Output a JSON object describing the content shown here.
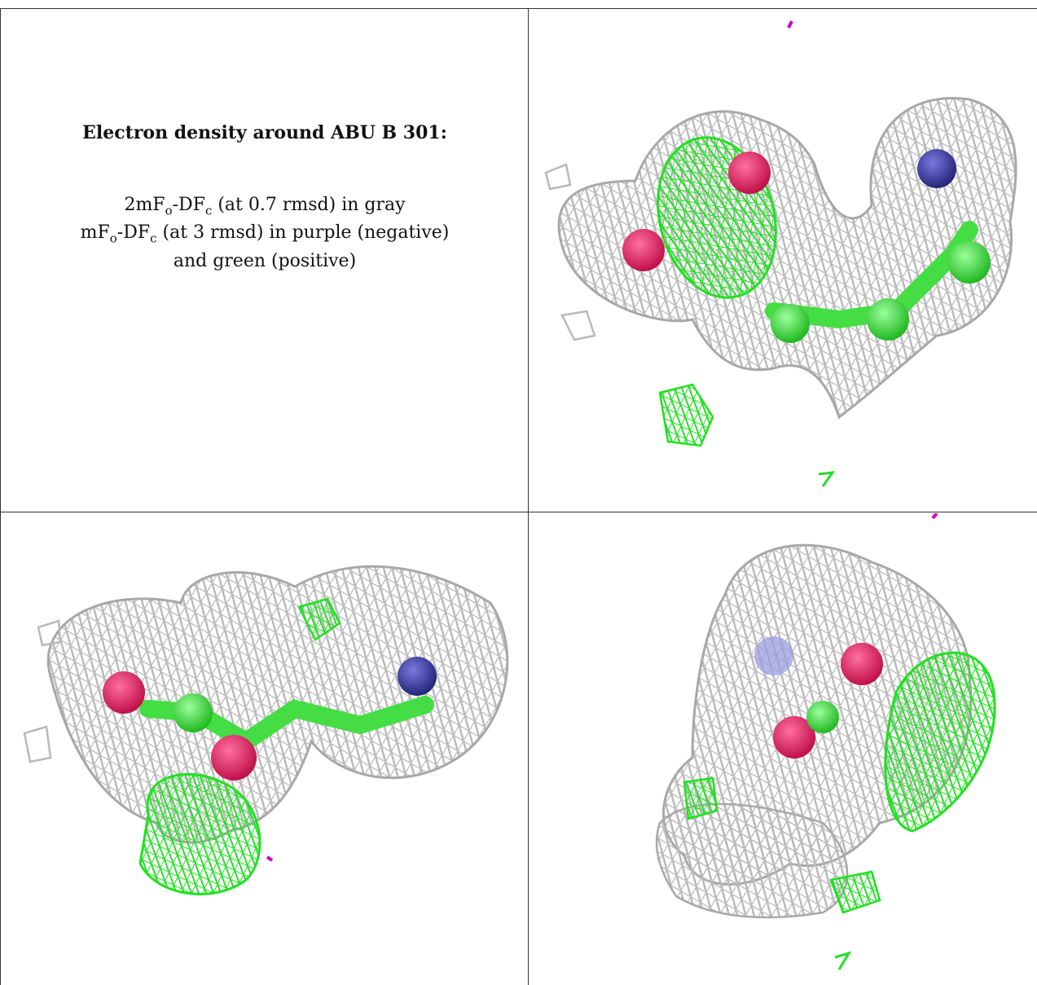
{
  "caption": {
    "title": "Electron density around ABU B 301:",
    "line1_a": "2mF",
    "line1_sub1": "o",
    "line1_b": "-DF",
    "line1_sub2": "c",
    "line1_c": " (at 0.7 rmsd) in gray",
    "line2_a": "mF",
    "line2_sub1": "o",
    "line2_b": "-DF",
    "line2_sub2": "c",
    "line2_c": " (at 3 rmsd) in purple (negative)",
    "line3": "and green (positive)"
  },
  "colors": {
    "mesh_gray": "#b9b9b9",
    "mesh_green": "#22e022",
    "atom_oxygen": "#e0245e",
    "atom_nitrogen": "#3a3aa8",
    "carbon_green": "#44dd44",
    "negative_purple": "#c800c8",
    "grid_line": "#333333"
  }
}
